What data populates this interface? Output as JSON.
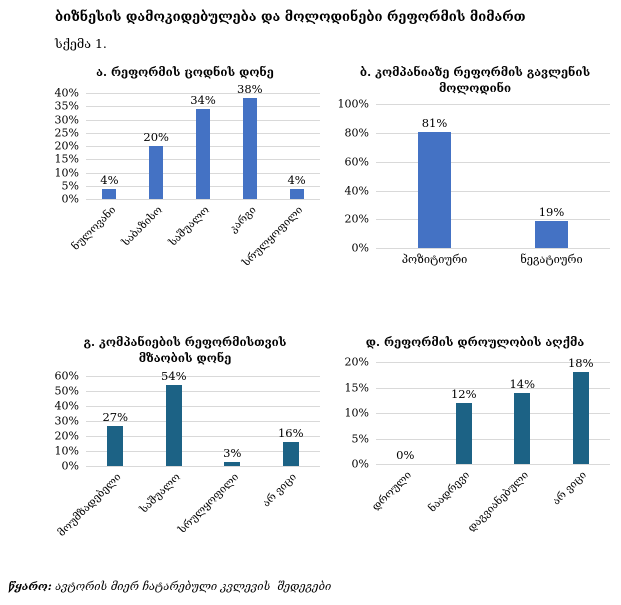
{
  "header": {
    "title": "ბიზნესის დამოკიდებულება და მოლოდინები რეფორმის მიმართ",
    "scheme_label": "სქემა 1."
  },
  "footer": {
    "source_label": "წყარო:",
    "source_text": " ავტორის მიერ ჩატარებული კვლევის  შედეგები"
  },
  "colors": {
    "series_blue": "#4472C4",
    "series_teal": "#1C6285",
    "gridline": "#D9D9D9",
    "text": "#000000"
  },
  "chart_data": [
    {
      "type": "bar",
      "title": "ა. რეფორმის ცოდნის დონე",
      "categories": [
        "ნულოვანი",
        "საბაზისო",
        "საშუალო",
        "კარგი",
        "სრულყოფილი"
      ],
      "values": [
        4,
        20,
        34,
        38,
        4
      ],
      "labels": [
        "4%",
        "20%",
        "34%",
        "38%",
        "4%"
      ],
      "xlabel": "",
      "ylabel": "",
      "ylim": [
        0,
        40
      ],
      "ytick_step": 5,
      "bar_color": "#4472C4",
      "grid": true,
      "legend": "none",
      "x_labels_rotated": true
    },
    {
      "type": "bar",
      "title": "ბ. კომპანიაზე რეფორმის გავლენის მოლოდინი",
      "categories": [
        "პოზიტიური",
        "ნეგატიური"
      ],
      "values": [
        81,
        19
      ],
      "labels": [
        "81%",
        "19%"
      ],
      "xlabel": "",
      "ylabel": "",
      "ylim": [
        0,
        100
      ],
      "ytick_step": 20,
      "bar_color": "#4472C4",
      "grid": true,
      "legend": "none",
      "x_labels_rotated": false
    },
    {
      "type": "bar",
      "title": "გ. კომპანიების რეფორმისთვის მზაობის დონე",
      "categories": [
        "მოუმზადებელი",
        "საშუალო",
        "სრულყოფილი",
        "არ ვიცი"
      ],
      "values": [
        27,
        54,
        3,
        16
      ],
      "labels": [
        "27%",
        "54%",
        "3%",
        "16%"
      ],
      "xlabel": "",
      "ylabel": "",
      "ylim": [
        0,
        60
      ],
      "ytick_step": 10,
      "bar_color": "#1C6285",
      "grid": true,
      "legend": "none",
      "x_labels_rotated": true
    },
    {
      "type": "bar",
      "title": "დ. რეფორმის დროულობის აღქმა",
      "categories": [
        "დროული",
        "ნაადრევი",
        "დაგვიანებული",
        "არ ვიცი"
      ],
      "values": [
        0,
        12,
        14,
        18
      ],
      "labels": [
        "0%",
        "12%",
        "14%",
        "18%"
      ],
      "xlabel": "",
      "ylabel": "",
      "ylim": [
        0,
        20
      ],
      "ytick_step": 5,
      "bar_color": "#1C6285",
      "grid": true,
      "legend": "none",
      "x_labels_rotated": true
    }
  ]
}
